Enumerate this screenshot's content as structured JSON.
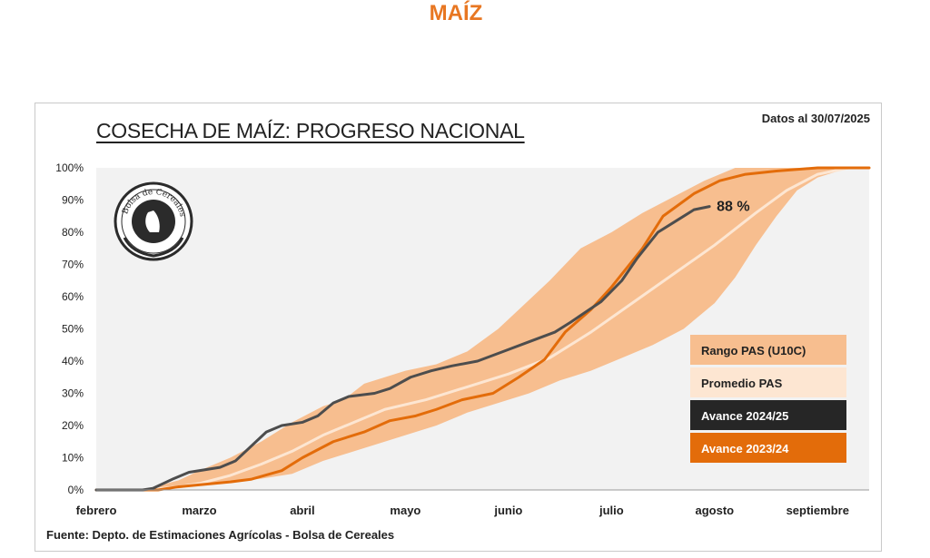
{
  "page": {
    "heading": "MAÍZ"
  },
  "chart_data": {
    "type": "area",
    "title": "COSECHA DE MAÍZ: PROGRESO NACIONAL",
    "date_note": "Datos al 30/07/2025",
    "source": "Fuente: Depto. de Estimaciones Agrícolas - Bolsa de Cereales",
    "y_ticks": [
      "0%",
      "10%",
      "20%",
      "30%",
      "40%",
      "50%",
      "60%",
      "70%",
      "80%",
      "90%",
      "100%"
    ],
    "ylim": [
      0,
      100
    ],
    "x_ticks": [
      "febrero",
      "marzo",
      "abril",
      "mayo",
      "junio",
      "julio",
      "agosto",
      "septiembre"
    ],
    "grid": false,
    "legend_position": "right",
    "annotation": "88 %",
    "colors": {
      "range": "#f7be8f",
      "average": "#fde6d2",
      "current": "#4d4d4d",
      "previous": "#e36c0a",
      "plot_bg": "#f2f2f2"
    },
    "series": [
      {
        "name": "Rango PAS (U10C)",
        "kind": "band",
        "upper": [
          [
            0,
            0
          ],
          [
            0.3,
            0
          ],
          [
            0.5,
            0.5
          ],
          [
            0.8,
            3
          ],
          [
            1,
            6
          ],
          [
            1.3,
            10
          ],
          [
            1.6,
            15
          ],
          [
            1.9,
            21
          ],
          [
            2.2,
            26
          ],
          [
            2.4,
            28
          ],
          [
            2.6,
            33
          ],
          [
            2.8,
            35
          ],
          [
            3,
            37
          ],
          [
            3.3,
            39
          ],
          [
            3.6,
            43
          ],
          [
            3.9,
            50
          ],
          [
            4.1,
            56
          ],
          [
            4.4,
            65
          ],
          [
            4.7,
            75
          ],
          [
            5,
            80
          ],
          [
            5.3,
            86
          ],
          [
            5.6,
            91
          ],
          [
            5.9,
            96
          ],
          [
            6.2,
            100
          ],
          [
            7.5,
            100
          ]
        ],
        "lower": [
          [
            0,
            0
          ],
          [
            0.5,
            0
          ],
          [
            0.8,
            0.5
          ],
          [
            1,
            1.5
          ],
          [
            1.3,
            2.5
          ],
          [
            1.6,
            3.5
          ],
          [
            1.9,
            5
          ],
          [
            2.2,
            9
          ],
          [
            2.5,
            12
          ],
          [
            2.8,
            15
          ],
          [
            3,
            17
          ],
          [
            3.3,
            20
          ],
          [
            3.6,
            24
          ],
          [
            3.9,
            27
          ],
          [
            4.2,
            30
          ],
          [
            4.5,
            34
          ],
          [
            4.8,
            37
          ],
          [
            5.1,
            41
          ],
          [
            5.4,
            45
          ],
          [
            5.7,
            50
          ],
          [
            6,
            58
          ],
          [
            6.2,
            66
          ],
          [
            6.4,
            76
          ],
          [
            6.6,
            85
          ],
          [
            6.8,
            93
          ],
          [
            7,
            97
          ],
          [
            7.3,
            100
          ],
          [
            7.5,
            100
          ]
        ]
      },
      {
        "name": "Promedio PAS",
        "kind": "line",
        "values": [
          [
            0,
            0
          ],
          [
            0.5,
            0
          ],
          [
            0.8,
            1
          ],
          [
            1,
            2
          ],
          [
            1.3,
            4.5
          ],
          [
            1.6,
            8
          ],
          [
            1.9,
            12
          ],
          [
            2.2,
            17
          ],
          [
            2.5,
            21
          ],
          [
            2.8,
            25
          ],
          [
            3.2,
            28
          ],
          [
            3.6,
            32
          ],
          [
            4,
            36
          ],
          [
            4.4,
            41
          ],
          [
            4.8,
            49
          ],
          [
            5.2,
            58
          ],
          [
            5.6,
            67
          ],
          [
            6,
            76
          ],
          [
            6.4,
            86
          ],
          [
            6.7,
            93
          ],
          [
            7,
            98
          ],
          [
            7.3,
            100
          ],
          [
            7.5,
            100
          ]
        ]
      },
      {
        "name": "Avance 2024/25",
        "kind": "line",
        "values": [
          [
            0,
            0
          ],
          [
            0.45,
            0
          ],
          [
            0.55,
            0.5
          ],
          [
            0.75,
            3.5
          ],
          [
            0.9,
            5.5
          ],
          [
            1.2,
            7
          ],
          [
            1.35,
            9
          ],
          [
            1.65,
            18
          ],
          [
            1.8,
            20
          ],
          [
            2,
            21
          ],
          [
            2.15,
            23
          ],
          [
            2.3,
            27
          ],
          [
            2.45,
            29
          ],
          [
            2.7,
            30
          ],
          [
            2.85,
            31.5
          ],
          [
            3.05,
            35
          ],
          [
            3.25,
            37
          ],
          [
            3.45,
            38.5
          ],
          [
            3.7,
            40
          ],
          [
            3.95,
            43
          ],
          [
            4.2,
            46
          ],
          [
            4.45,
            49
          ],
          [
            4.6,
            52
          ],
          [
            4.9,
            58.5
          ],
          [
            5.1,
            65
          ],
          [
            5.25,
            72
          ],
          [
            5.45,
            80
          ],
          [
            5.65,
            84
          ],
          [
            5.8,
            87
          ],
          [
            5.95,
            88
          ]
        ]
      },
      {
        "name": "Avance 2023/24",
        "kind": "line",
        "values": [
          [
            0,
            0
          ],
          [
            0.6,
            0
          ],
          [
            0.8,
            1
          ],
          [
            1.3,
            2.5
          ],
          [
            1.5,
            3.3
          ],
          [
            1.8,
            6
          ],
          [
            2,
            10
          ],
          [
            2.3,
            15
          ],
          [
            2.6,
            18
          ],
          [
            2.85,
            21.5
          ],
          [
            3.1,
            23
          ],
          [
            3.3,
            25
          ],
          [
            3.55,
            28
          ],
          [
            3.85,
            30
          ],
          [
            4.1,
            35
          ],
          [
            4.35,
            40.5
          ],
          [
            4.55,
            49
          ],
          [
            4.8,
            56
          ],
          [
            5,
            63
          ],
          [
            5.3,
            75
          ],
          [
            5.5,
            85
          ],
          [
            5.8,
            92
          ],
          [
            6.05,
            96
          ],
          [
            6.3,
            98
          ],
          [
            6.6,
            99
          ],
          [
            7,
            100
          ],
          [
            7.5,
            100
          ]
        ]
      }
    ]
  }
}
